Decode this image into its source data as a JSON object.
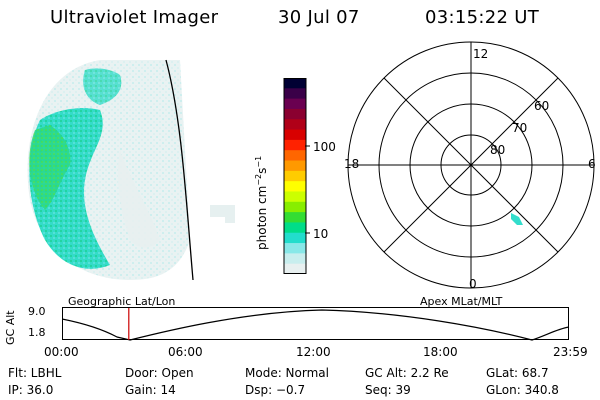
{
  "header": {
    "instrument": "Ultraviolet Imager",
    "date": "30 Jul 07",
    "time": "03:15:22 UT"
  },
  "colorbar": {
    "unit_label": "photon cm",
    "unit_exp1": "−2",
    "unit_mid": "s",
    "unit_exp2": "−1",
    "tick_100": "100",
    "tick_10": "10",
    "colors": [
      "#000033",
      "#3a0048",
      "#6a0050",
      "#8a0030",
      "#b00018",
      "#d80000",
      "#ff2200",
      "#ff6600",
      "#ff9900",
      "#ffcc00",
      "#ffff00",
      "#ccff00",
      "#88ee00",
      "#33dd33",
      "#00dd88",
      "#22ddcc",
      "#88e8e8",
      "#c8eeee",
      "#e8f0f0"
    ]
  },
  "polar": {
    "label_top": "12",
    "label_bottom": "0",
    "label_left": "18",
    "label_right": "6",
    "ring_60": "60",
    "ring_70": "70",
    "ring_80": "80"
  },
  "timeline": {
    "left_label": "Geographic Lat/Lon",
    "right_label": "Apex MLat/MLT",
    "axis_label": "GC Alt",
    "y_max": "9.0",
    "y_min": "1.8",
    "x_ticks": [
      "00:00",
      "06:00",
      "12:00",
      "18:00",
      "23:59"
    ],
    "current_fraction": 0.132
  },
  "info": {
    "flt": "Flt: LBHL",
    "door": "Door: Open",
    "mode": "Mode: Normal",
    "gc_alt": "GC Alt: 2.2 Re",
    "glat": "GLat: 68.7",
    "ip": "IP: 36.0",
    "gain": "Gain: 14",
    "dsp": "Dsp:   −0.7",
    "seq": "Seq: 39",
    "glon": "GLon: 340.8"
  }
}
